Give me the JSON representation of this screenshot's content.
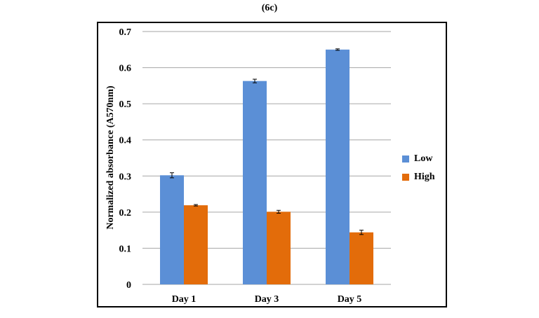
{
  "figure": {
    "panel_label": "(6c)"
  },
  "chart_data": {
    "type": "bar",
    "title": "",
    "xlabel": "",
    "ylabel": "Normalized absorbance (A570nm)",
    "categories": [
      "Day 1",
      "Day 3",
      "Day 5"
    ],
    "series": [
      {
        "name": "Low",
        "color": "#5b8fd6",
        "values": [
          0.302,
          0.563,
          0.65
        ],
        "errors": [
          0.007,
          0.005,
          0.002
        ]
      },
      {
        "name": "High",
        "color": "#e36c0a",
        "values": [
          0.219,
          0.201,
          0.144
        ],
        "errors": [
          0.002,
          0.004,
          0.006
        ]
      }
    ],
    "ylim": [
      0,
      0.7
    ],
    "yticks": [
      "0",
      "0.1",
      "0.2",
      "0.3",
      "0.4",
      "0.5",
      "0.6",
      "0.7"
    ],
    "grid": true,
    "legend_position": "right",
    "error_bars": true
  }
}
